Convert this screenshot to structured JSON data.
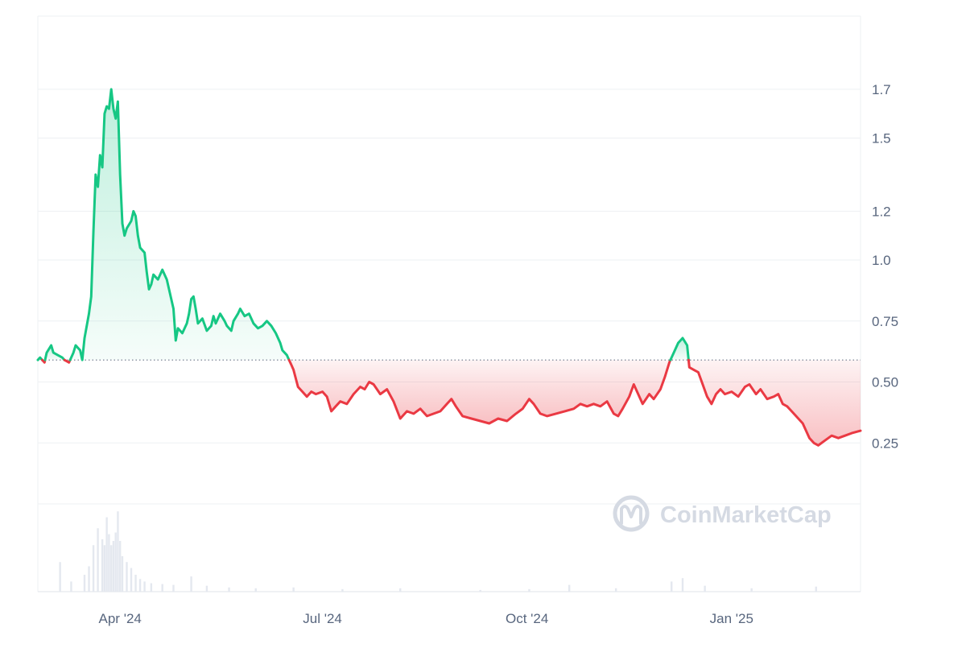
{
  "chart_data": {
    "type": "area",
    "title": "",
    "xlabel": "",
    "ylabel": "",
    "x_ticks": [
      "Apr '24",
      "Jul '24",
      "Oct '24",
      "Jan '25"
    ],
    "x_tick_dates": [
      "2024-04-01",
      "2024-07-01",
      "2024-10-01",
      "2025-01-01"
    ],
    "x_range": [
      "2024-02-24",
      "2025-02-28"
    ],
    "y_ticks": [
      0.25,
      0.5,
      0.75,
      1.0,
      1.2,
      1.5,
      1.7
    ],
    "y_tick_labels": [
      "0.25",
      "0.50",
      "0.75",
      "1.0",
      "1.2",
      "1.5",
      "1.7"
    ],
    "ylim": [
      0,
      2.0
    ],
    "baseline": 0.59,
    "grid": true,
    "legend": "none",
    "colors": {
      "above": "#16c784",
      "below": "#ea3943",
      "grid": "#eef0f3",
      "axis_text": "#58667e",
      "volume": "#e4e8ef",
      "watermark": "#d5dae3"
    },
    "watermark": "CoinMarketCap",
    "series": [
      {
        "values": [
          [
            "2024-02-24",
            0.59
          ],
          [
            "2024-02-25",
            0.6
          ],
          [
            "2024-02-27",
            0.58
          ],
          [
            "2024-02-28",
            0.62
          ],
          [
            "2024-03-01",
            0.65
          ],
          [
            "2024-03-02",
            0.62
          ],
          [
            "2024-03-04",
            0.61
          ],
          [
            "2024-03-06",
            0.6
          ],
          [
            "2024-03-07",
            0.59
          ],
          [
            "2024-03-09",
            0.58
          ],
          [
            "2024-03-11",
            0.62
          ],
          [
            "2024-03-12",
            0.65
          ],
          [
            "2024-03-14",
            0.63
          ],
          [
            "2024-03-15",
            0.59
          ],
          [
            "2024-03-16",
            0.68
          ],
          [
            "2024-03-18",
            0.78
          ],
          [
            "2024-03-19",
            0.85
          ],
          [
            "2024-03-20",
            1.12
          ],
          [
            "2024-03-21",
            1.35
          ],
          [
            "2024-03-22",
            1.3
          ],
          [
            "2024-03-23",
            1.43
          ],
          [
            "2024-03-24",
            1.38
          ],
          [
            "2024-03-25",
            1.6
          ],
          [
            "2024-03-26",
            1.63
          ],
          [
            "2024-03-27",
            1.62
          ],
          [
            "2024-03-28",
            1.7
          ],
          [
            "2024-03-29",
            1.62
          ],
          [
            "2024-03-30",
            1.58
          ],
          [
            "2024-03-31",
            1.65
          ],
          [
            "2024-04-01",
            1.35
          ],
          [
            "2024-04-02",
            1.15
          ],
          [
            "2024-04-03",
            1.1
          ],
          [
            "2024-04-04",
            1.13
          ],
          [
            "2024-04-06",
            1.16
          ],
          [
            "2024-04-07",
            1.2
          ],
          [
            "2024-04-08",
            1.18
          ],
          [
            "2024-04-09",
            1.1
          ],
          [
            "2024-04-10",
            1.05
          ],
          [
            "2024-04-12",
            1.03
          ],
          [
            "2024-04-13",
            0.95
          ],
          [
            "2024-04-14",
            0.88
          ],
          [
            "2024-04-15",
            0.9
          ],
          [
            "2024-04-16",
            0.94
          ],
          [
            "2024-04-18",
            0.92
          ],
          [
            "2024-04-20",
            0.96
          ],
          [
            "2024-04-22",
            0.92
          ],
          [
            "2024-04-23",
            0.88
          ],
          [
            "2024-04-25",
            0.8
          ],
          [
            "2024-04-26",
            0.67
          ],
          [
            "2024-04-27",
            0.72
          ],
          [
            "2024-04-29",
            0.7
          ],
          [
            "2024-05-01",
            0.74
          ],
          [
            "2024-05-02",
            0.78
          ],
          [
            "2024-05-03",
            0.84
          ],
          [
            "2024-05-04",
            0.85
          ],
          [
            "2024-05-05",
            0.8
          ],
          [
            "2024-05-06",
            0.74
          ],
          [
            "2024-05-08",
            0.76
          ],
          [
            "2024-05-10",
            0.71
          ],
          [
            "2024-05-12",
            0.73
          ],
          [
            "2024-05-13",
            0.77
          ],
          [
            "2024-05-14",
            0.74
          ],
          [
            "2024-05-16",
            0.78
          ],
          [
            "2024-05-18",
            0.75
          ],
          [
            "2024-05-19",
            0.73
          ],
          [
            "2024-05-21",
            0.71
          ],
          [
            "2024-05-22",
            0.75
          ],
          [
            "2024-05-24",
            0.78
          ],
          [
            "2024-05-25",
            0.8
          ],
          [
            "2024-05-27",
            0.77
          ],
          [
            "2024-05-29",
            0.78
          ],
          [
            "2024-05-31",
            0.74
          ],
          [
            "2024-06-02",
            0.72
          ],
          [
            "2024-06-04",
            0.73
          ],
          [
            "2024-06-06",
            0.75
          ],
          [
            "2024-06-08",
            0.73
          ],
          [
            "2024-06-10",
            0.7
          ],
          [
            "2024-06-12",
            0.66
          ],
          [
            "2024-06-13",
            0.63
          ],
          [
            "2024-06-15",
            0.61
          ],
          [
            "2024-06-16",
            0.59
          ],
          [
            "2024-06-17",
            0.57
          ],
          [
            "2024-06-18",
            0.55
          ],
          [
            "2024-06-20",
            0.48
          ],
          [
            "2024-06-22",
            0.46
          ],
          [
            "2024-06-24",
            0.44
          ],
          [
            "2024-06-26",
            0.46
          ],
          [
            "2024-06-28",
            0.45
          ],
          [
            "2024-07-01",
            0.46
          ],
          [
            "2024-07-03",
            0.44
          ],
          [
            "2024-07-05",
            0.38
          ],
          [
            "2024-07-07",
            0.4
          ],
          [
            "2024-07-09",
            0.42
          ],
          [
            "2024-07-12",
            0.41
          ],
          [
            "2024-07-15",
            0.45
          ],
          [
            "2024-07-18",
            0.48
          ],
          [
            "2024-07-20",
            0.47
          ],
          [
            "2024-07-22",
            0.5
          ],
          [
            "2024-07-24",
            0.49
          ],
          [
            "2024-07-27",
            0.45
          ],
          [
            "2024-07-30",
            0.47
          ],
          [
            "2024-08-02",
            0.42
          ],
          [
            "2024-08-05",
            0.35
          ],
          [
            "2024-08-08",
            0.38
          ],
          [
            "2024-08-11",
            0.37
          ],
          [
            "2024-08-14",
            0.39
          ],
          [
            "2024-08-17",
            0.36
          ],
          [
            "2024-08-20",
            0.37
          ],
          [
            "2024-08-23",
            0.38
          ],
          [
            "2024-08-26",
            0.41
          ],
          [
            "2024-08-28",
            0.43
          ],
          [
            "2024-08-30",
            0.4
          ],
          [
            "2024-09-02",
            0.36
          ],
          [
            "2024-09-06",
            0.35
          ],
          [
            "2024-09-10",
            0.34
          ],
          [
            "2024-09-14",
            0.33
          ],
          [
            "2024-09-18",
            0.35
          ],
          [
            "2024-09-22",
            0.34
          ],
          [
            "2024-09-26",
            0.37
          ],
          [
            "2024-09-29",
            0.39
          ],
          [
            "2024-10-02",
            0.43
          ],
          [
            "2024-10-04",
            0.41
          ],
          [
            "2024-10-07",
            0.37
          ],
          [
            "2024-10-10",
            0.36
          ],
          [
            "2024-10-14",
            0.37
          ],
          [
            "2024-10-18",
            0.38
          ],
          [
            "2024-10-22",
            0.39
          ],
          [
            "2024-10-25",
            0.41
          ],
          [
            "2024-10-28",
            0.4
          ],
          [
            "2024-10-31",
            0.41
          ],
          [
            "2024-11-03",
            0.4
          ],
          [
            "2024-11-06",
            0.42
          ],
          [
            "2024-11-09",
            0.37
          ],
          [
            "2024-11-11",
            0.36
          ],
          [
            "2024-11-13",
            0.39
          ],
          [
            "2024-11-16",
            0.44
          ],
          [
            "2024-11-18",
            0.49
          ],
          [
            "2024-11-20",
            0.45
          ],
          [
            "2024-11-22",
            0.41
          ],
          [
            "2024-11-25",
            0.45
          ],
          [
            "2024-11-27",
            0.43
          ],
          [
            "2024-11-30",
            0.47
          ],
          [
            "2024-12-02",
            0.52
          ],
          [
            "2024-12-04",
            0.58
          ],
          [
            "2024-12-06",
            0.62
          ],
          [
            "2024-12-08",
            0.66
          ],
          [
            "2024-12-10",
            0.68
          ],
          [
            "2024-12-12",
            0.65
          ],
          [
            "2024-12-13",
            0.56
          ],
          [
            "2024-12-15",
            0.55
          ],
          [
            "2024-12-17",
            0.54
          ],
          [
            "2024-12-19",
            0.49
          ],
          [
            "2024-12-21",
            0.44
          ],
          [
            "2024-12-23",
            0.41
          ],
          [
            "2024-12-25",
            0.45
          ],
          [
            "2024-12-27",
            0.47
          ],
          [
            "2024-12-29",
            0.45
          ],
          [
            "2025-01-01",
            0.46
          ],
          [
            "2025-01-04",
            0.44
          ],
          [
            "2025-01-07",
            0.48
          ],
          [
            "2025-01-09",
            0.49
          ],
          [
            "2025-01-12",
            0.45
          ],
          [
            "2025-01-14",
            0.47
          ],
          [
            "2025-01-17",
            0.43
          ],
          [
            "2025-01-20",
            0.44
          ],
          [
            "2025-01-22",
            0.45
          ],
          [
            "2025-01-24",
            0.41
          ],
          [
            "2025-01-26",
            0.4
          ],
          [
            "2025-01-28",
            0.38
          ],
          [
            "2025-01-30",
            0.36
          ],
          [
            "2025-02-02",
            0.33
          ],
          [
            "2025-02-05",
            0.27
          ],
          [
            "2025-02-07",
            0.25
          ],
          [
            "2025-02-09",
            0.24
          ],
          [
            "2025-02-12",
            0.26
          ],
          [
            "2025-02-15",
            0.28
          ],
          [
            "2025-02-18",
            0.27
          ],
          [
            "2025-02-21",
            0.28
          ],
          [
            "2025-02-24",
            0.29
          ],
          [
            "2025-02-28",
            0.3
          ]
        ]
      }
    ],
    "volume": {
      "values": [
        [
          "2024-03-05",
          0.35
        ],
        [
          "2024-03-10",
          0.12
        ],
        [
          "2024-03-16",
          0.2
        ],
        [
          "2024-03-18",
          0.3
        ],
        [
          "2024-03-20",
          0.55
        ],
        [
          "2024-03-22",
          0.75
        ],
        [
          "2024-03-24",
          0.62
        ],
        [
          "2024-03-25",
          0.55
        ],
        [
          "2024-03-26",
          0.88
        ],
        [
          "2024-03-27",
          0.68
        ],
        [
          "2024-03-28",
          0.55
        ],
        [
          "2024-03-29",
          0.6
        ],
        [
          "2024-03-30",
          0.7
        ],
        [
          "2024-03-31",
          0.95
        ],
        [
          "2024-04-01",
          0.6
        ],
        [
          "2024-04-02",
          0.42
        ],
        [
          "2024-04-04",
          0.35
        ],
        [
          "2024-04-06",
          0.28
        ],
        [
          "2024-04-08",
          0.2
        ],
        [
          "2024-04-10",
          0.15
        ],
        [
          "2024-04-12",
          0.12
        ],
        [
          "2024-04-15",
          0.1
        ],
        [
          "2024-04-20",
          0.09
        ],
        [
          "2024-04-25",
          0.08
        ],
        [
          "2024-05-03",
          0.18
        ],
        [
          "2024-05-10",
          0.07
        ],
        [
          "2024-05-20",
          0.05
        ],
        [
          "2024-06-01",
          0.04
        ],
        [
          "2024-06-18",
          0.05
        ],
        [
          "2024-07-10",
          0.03
        ],
        [
          "2024-08-05",
          0.04
        ],
        [
          "2024-09-10",
          0.02
        ],
        [
          "2024-10-02",
          0.03
        ],
        [
          "2024-10-20",
          0.08
        ],
        [
          "2024-11-10",
          0.04
        ],
        [
          "2024-12-05",
          0.12
        ],
        [
          "2024-12-10",
          0.16
        ],
        [
          "2024-12-20",
          0.07
        ],
        [
          "2025-01-10",
          0.04
        ],
        [
          "2025-02-08",
          0.06
        ]
      ]
    }
  }
}
